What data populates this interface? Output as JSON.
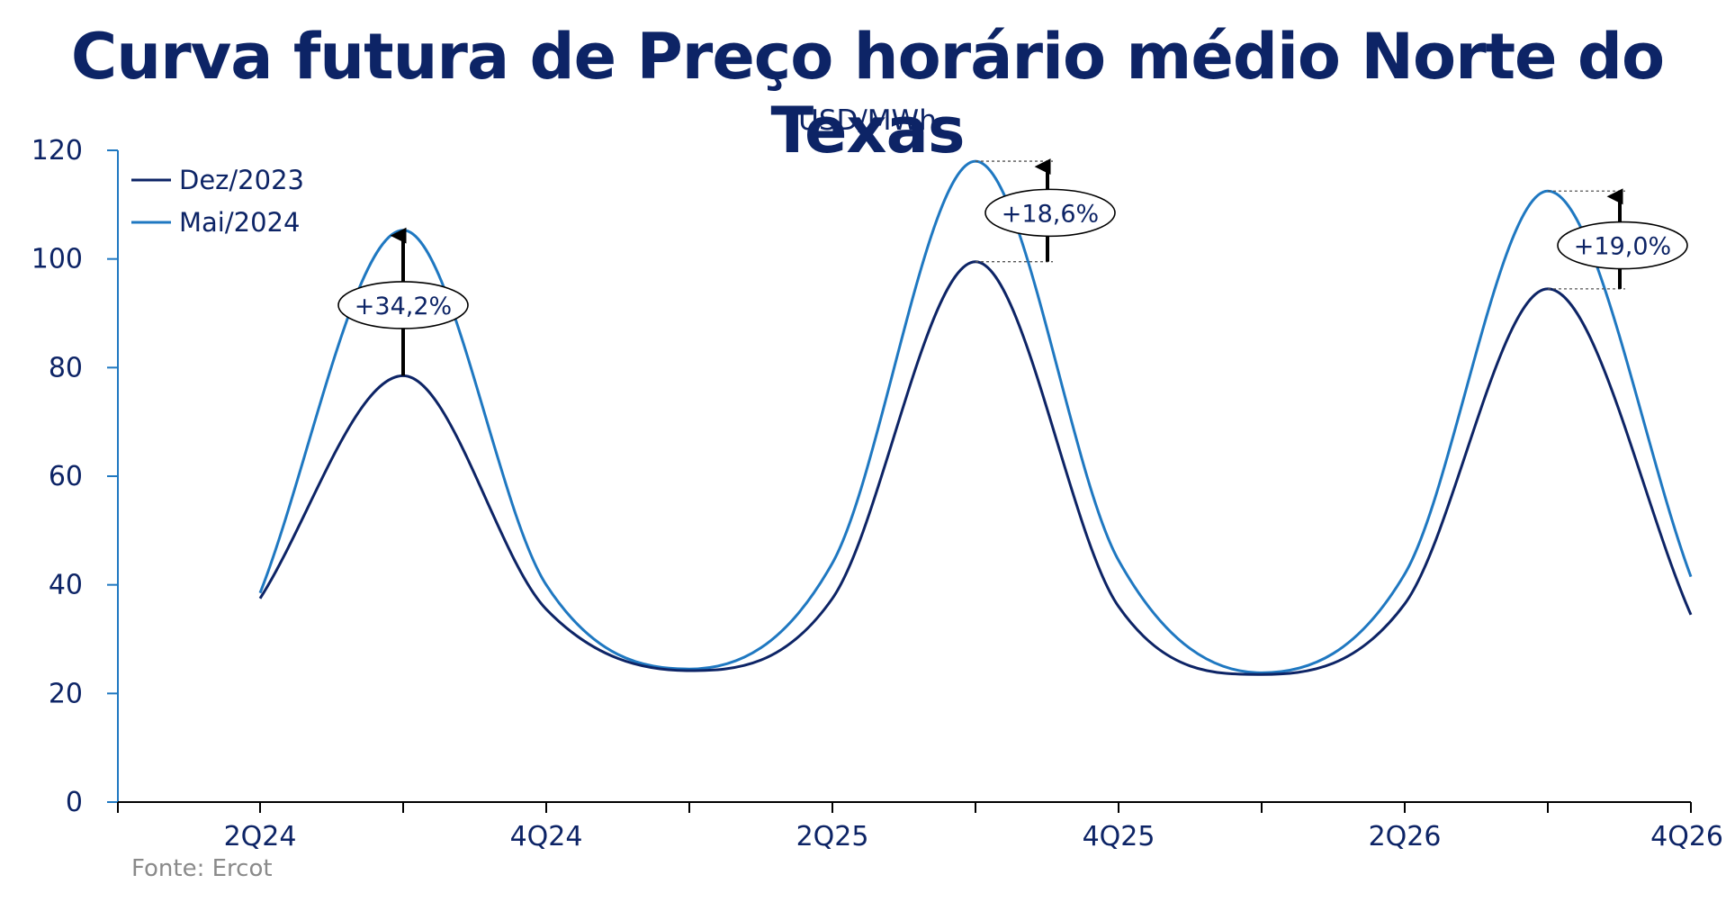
{
  "chart_data": {
    "type": "line",
    "title": "Curva futura de Preço horário médio Norte do Texas",
    "subtitle": "USD/MWh",
    "source": "Fonte: Ercot",
    "x_ticks": [
      "2Q24",
      "3Q24",
      "4Q24",
      "1Q25",
      "2Q25",
      "3Q25",
      "4Q25",
      "1Q26",
      "2Q26",
      "3Q26",
      "4Q26"
    ],
    "x_tick_labels": [
      "2Q24",
      "",
      "4Q24",
      "",
      "2Q25",
      "",
      "4Q25",
      "",
      "2Q26",
      "",
      "4Q26"
    ],
    "ylim": [
      0,
      120
    ],
    "y_ticks": [
      0,
      20,
      40,
      60,
      80,
      100,
      120
    ],
    "legend_position": "top-left",
    "series": [
      {
        "name": "Dez/2023",
        "color": "#0d2466",
        "x": [
          "2Q24",
          "3Q24",
          "4Q24",
          "1Q25",
          "2Q25",
          "3Q25",
          "4Q25",
          "1Q26",
          "2Q26",
          "3Q26",
          "4Q26"
        ],
        "values": [
          37.5,
          78.5,
          35.5,
          24.2,
          37.5,
          99.5,
          36.0,
          23.5,
          36.5,
          94.5,
          34.5
        ]
      },
      {
        "name": "Mai/2024",
        "color": "#1f78c1",
        "x": [
          "2Q24",
          "3Q24",
          "4Q24",
          "1Q25",
          "2Q25",
          "3Q25",
          "4Q25",
          "1Q26",
          "2Q26",
          "3Q26",
          "4Q26"
        ],
        "values": [
          38.5,
          105.3,
          40.0,
          24.5,
          44.0,
          118.0,
          44.5,
          23.8,
          42.0,
          112.5,
          41.5
        ]
      }
    ],
    "annotations": [
      {
        "label": "+34,2%",
        "x": "3Q24",
        "from": 78.5,
        "to": 105.3
      },
      {
        "label": "+18,6%",
        "x": "3Q25",
        "from": 99.5,
        "to": 118.0
      },
      {
        "label": "+19,0%",
        "x": "3Q26",
        "from": 94.5,
        "to": 112.5
      }
    ]
  }
}
